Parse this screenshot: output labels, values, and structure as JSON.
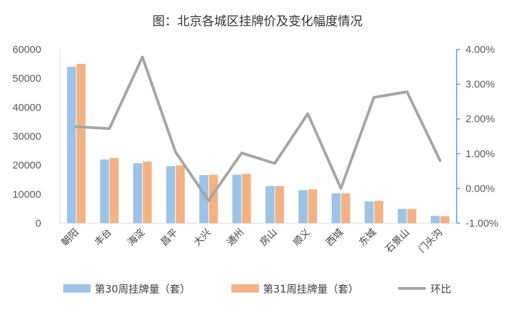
{
  "chart_data": {
    "type": "bar",
    "title": "图：北京各城区挂牌价及变化幅度情况",
    "categories": [
      "朝阳",
      "丰台",
      "海淀",
      "昌平",
      "大兴",
      "通州",
      "房山",
      "顺义",
      "西城",
      "东城",
      "石景山",
      "门头沟"
    ],
    "series": [
      {
        "name": "第30周挂牌量（套）",
        "type": "bar",
        "axis": "left",
        "color": "#9DC3E6",
        "values": [
          54000,
          22000,
          20700,
          19700,
          16600,
          16700,
          12800,
          11400,
          10300,
          7500,
          4900,
          2500
        ]
      },
      {
        "name": "第31周挂牌量（套）",
        "type": "bar",
        "axis": "left",
        "color": "#F4B183",
        "values": [
          55000,
          22500,
          21300,
          20000,
          16700,
          17000,
          12800,
          11700,
          10300,
          7700,
          4900,
          2400
        ]
      },
      {
        "name": "环比",
        "type": "line",
        "axis": "right",
        "color": "#A5A5A5",
        "values": [
          1.78,
          1.72,
          3.78,
          1.05,
          -0.35,
          1.02,
          0.72,
          2.15,
          0.0,
          2.62,
          2.78,
          0.8
        ]
      }
    ],
    "ylim": [
      0,
      60000
    ],
    "y_ticks": [
      "0",
      "10000",
      "20000",
      "30000",
      "40000",
      "50000",
      "60000"
    ],
    "y2lim": [
      -1,
      4
    ],
    "y2_ticks": [
      "-1.00%",
      "0.00%",
      "1.00%",
      "2.00%",
      "3.00%",
      "4.00%"
    ],
    "grid": false,
    "legend_position": "bottom"
  },
  "colors": {
    "axis": "#D9D9D9",
    "right_axis": "#5B9BD5"
  }
}
